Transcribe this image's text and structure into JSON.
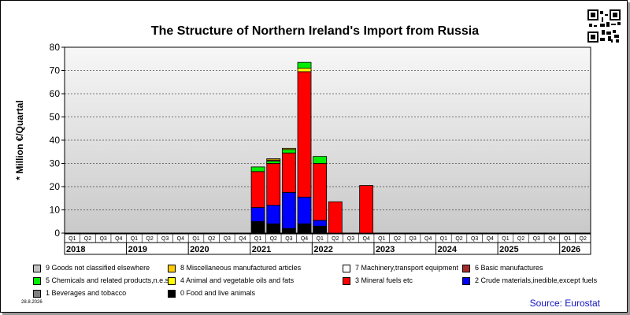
{
  "title": "The Structure of Northern Ireland's Import from Russia",
  "footer": {
    "date": "28.8.2026",
    "source": "Source: Eurostat"
  },
  "chart_data": {
    "type": "bar",
    "stacked": true,
    "title": "The Structure of Northern Ireland's Import from Russia",
    "ylabel": "* Million €/Quartal",
    "ylim": [
      0,
      80
    ],
    "yticks": [
      0,
      10,
      20,
      30,
      40,
      50,
      60,
      70,
      80
    ],
    "grid": true,
    "legend_position": "bottom",
    "categories": [
      "Q1",
      "Q2",
      "Q3",
      "Q4",
      "Q1",
      "Q2",
      "Q3",
      "Q4",
      "Q1",
      "Q2",
      "Q3",
      "Q4",
      "Q1",
      "Q2",
      "Q3",
      "Q4",
      "Q1",
      "Q2",
      "Q3",
      "Q4",
      "Q1",
      "Q2",
      "Q3",
      "Q4",
      "Q1",
      "Q2",
      "Q3",
      "Q4",
      "Q1",
      "Q2",
      "Q3",
      "Q4",
      "Q1",
      "Q2"
    ],
    "years": [
      "2018",
      "2019",
      "2020",
      "2021",
      "2022",
      "2023",
      "2024",
      "2025",
      "2026"
    ],
    "series": [
      {
        "name": "0 Food and live animals",
        "color": "#000000",
        "values": [
          0,
          0,
          0,
          0,
          0,
          0,
          0,
          0,
          0,
          0,
          0,
          0,
          5,
          4,
          2,
          4,
          3,
          0,
          0,
          0,
          0,
          0,
          0,
          0,
          0,
          0,
          0,
          0,
          0,
          0,
          0,
          0,
          0,
          0
        ]
      },
      {
        "name": "1 Beverages and tobacco",
        "color": "#808080",
        "values": [
          0,
          0,
          0,
          0,
          0,
          0,
          0,
          0,
          0,
          0,
          0,
          0,
          0,
          0,
          0,
          0,
          0,
          0,
          0,
          0,
          0,
          0,
          0,
          0,
          0,
          0,
          0,
          0,
          0,
          0,
          0,
          0,
          0,
          0
        ]
      },
      {
        "name": "2 Crude materials,inedible,except fuels",
        "color": "#0000ff",
        "values": [
          0,
          0,
          0,
          0,
          0,
          0,
          0,
          0,
          0,
          0,
          0,
          0,
          6,
          8,
          15.5,
          11.5,
          2.5,
          0,
          0,
          0,
          0,
          0,
          0,
          0,
          0,
          0,
          0,
          0,
          0,
          0,
          0,
          0,
          0,
          0
        ]
      },
      {
        "name": "3 Mineral fuels etc",
        "color": "#ff0000",
        "values": [
          0,
          0,
          0,
          0,
          0,
          0,
          0,
          0,
          0,
          0,
          0,
          0,
          15.5,
          18,
          17,
          54,
          24.5,
          13.5,
          0,
          20.5,
          0,
          0,
          0,
          0,
          0,
          0,
          0,
          0,
          0,
          0,
          0,
          0,
          0,
          0
        ]
      },
      {
        "name": "4 Animal and vegetable oils and fats",
        "color": "#ffff00",
        "values": [
          0,
          0,
          0,
          0,
          0,
          0,
          0,
          0,
          0,
          0,
          0,
          0,
          0,
          0,
          0,
          1.5,
          0,
          0,
          0,
          0,
          0,
          0,
          0,
          0,
          0,
          0,
          0,
          0,
          0,
          0,
          0,
          0,
          0,
          0
        ]
      },
      {
        "name": "5 Chemicals and related products,n.e.s.",
        "color": "#00ee00",
        "values": [
          0,
          0,
          0,
          0,
          0,
          0,
          0,
          0,
          0,
          0,
          0,
          0,
          2,
          1,
          1.5,
          2.5,
          3,
          0,
          0,
          0,
          0,
          0,
          0,
          0,
          0,
          0,
          0,
          0,
          0,
          0,
          0,
          0,
          0,
          0
        ]
      },
      {
        "name": "6 Basic manufactures",
        "color": "#a52a2a",
        "values": [
          0,
          0,
          0,
          0,
          0,
          0,
          0,
          0,
          0,
          0,
          0,
          0,
          0,
          0.5,
          0,
          0,
          0,
          0,
          0,
          0,
          0,
          0,
          0,
          0,
          0,
          0,
          0,
          0,
          0,
          0,
          0,
          0,
          0,
          0
        ]
      },
      {
        "name": "7 Machinery,transport equipment",
        "color": "#ffffff",
        "values": [
          0,
          0,
          0,
          0,
          0,
          0,
          0,
          0,
          0,
          0,
          0,
          0,
          0,
          0,
          0,
          0,
          0,
          0,
          0,
          0,
          0,
          0,
          0,
          0,
          0,
          0,
          0,
          0,
          0,
          0,
          0,
          0,
          0,
          0
        ]
      },
      {
        "name": "8 Miscellaneous manufactured articles",
        "color": "#ffcc00",
        "values": [
          0,
          0,
          0,
          0,
          0,
          0,
          0,
          0,
          0,
          0,
          0,
          0,
          0,
          0.5,
          0.5,
          0,
          0,
          0,
          0,
          0,
          0,
          0,
          0,
          0,
          0,
          0,
          0,
          0,
          0,
          0,
          0,
          0,
          0,
          0
        ]
      },
      {
        "name": "9 Goods not classified elsewhere",
        "color": "#c0c0c0",
        "values": [
          0,
          0,
          0,
          0,
          0,
          0,
          0,
          0,
          0,
          0,
          0,
          0,
          0,
          0,
          0,
          0,
          0,
          0,
          0,
          0,
          0,
          0,
          0,
          0,
          0,
          0,
          0,
          0,
          0,
          0,
          0,
          0,
          0,
          0
        ]
      }
    ],
    "legend_order": [
      9,
      8,
      7,
      6,
      5,
      4,
      3,
      2,
      1,
      0
    ]
  }
}
